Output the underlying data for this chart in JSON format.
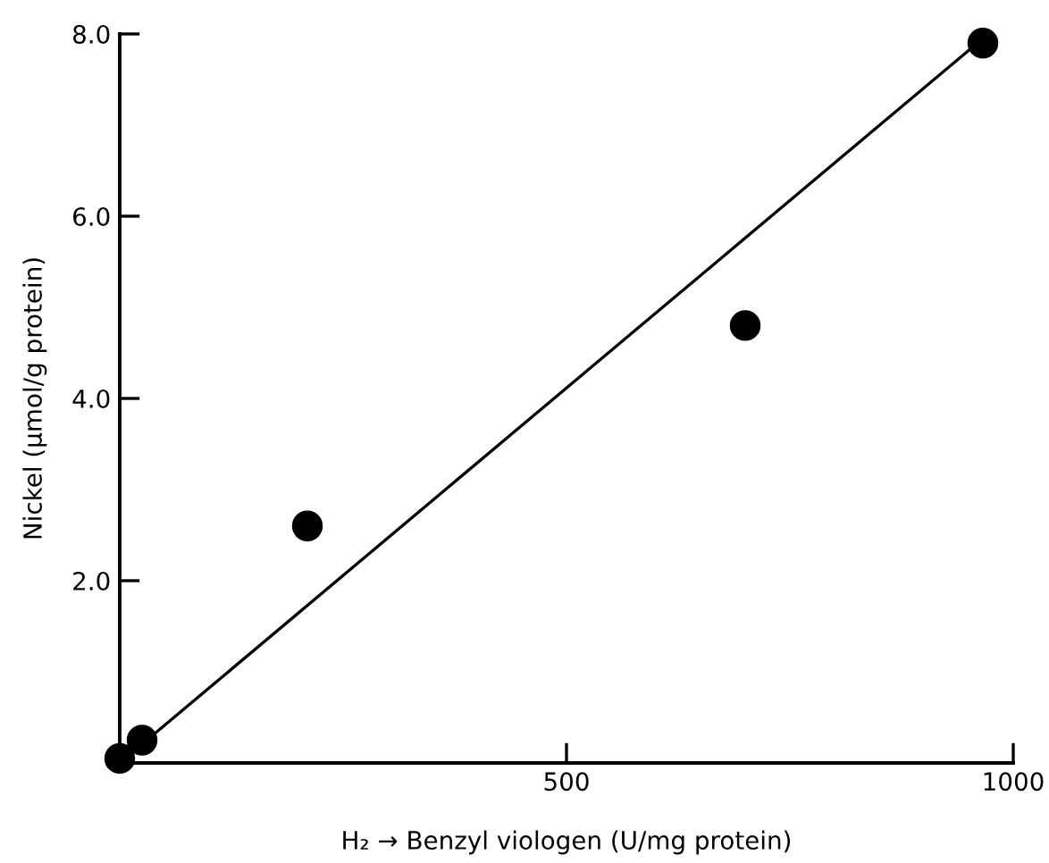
{
  "chart_data": {
    "type": "scatter",
    "xlabel": "H₂ → Benzyl viologen (U/mg protein)",
    "ylabel": "Nickel (μmol/g protein)",
    "xlim": [
      0,
      1000
    ],
    "ylim": [
      0,
      8.0
    ],
    "xticks": [
      {
        "value": 500,
        "label": "500"
      },
      {
        "value": 1000,
        "label": "1000"
      }
    ],
    "yticks": [
      {
        "value": 2.0,
        "label": "2.0"
      },
      {
        "value": 4.0,
        "label": "4.0"
      },
      {
        "value": 6.0,
        "label": "6.0"
      },
      {
        "value": 8.0,
        "label": "8.0"
      }
    ],
    "grid": false,
    "legend": false,
    "series": [
      {
        "color": "#000000",
        "marker": "circle",
        "x": [
          0,
          25,
          210,
          700,
          966
        ],
        "values": [
          0.05,
          0.25,
          2.6,
          4.8,
          7.9
        ]
      },
      {
        "type": "line",
        "color": "#000000",
        "marker": "none",
        "line_style": "solid",
        "x": [
          0,
          966
        ],
        "values": [
          0.0,
          7.95
        ]
      }
    ]
  }
}
